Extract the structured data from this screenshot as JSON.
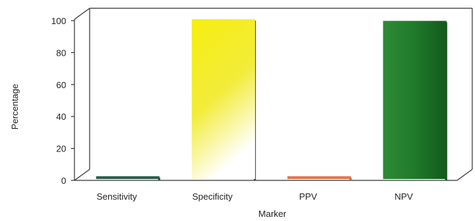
{
  "chart_data": {
    "type": "bar",
    "title": "",
    "xlabel": "Marker",
    "ylabel": "Percentage",
    "categories": [
      "Sensitivity",
      "Specificity",
      "PPV",
      "NPV"
    ],
    "values": [
      1,
      100,
      1,
      99
    ],
    "ylim": [
      0,
      100
    ],
    "yticks": [
      0,
      20,
      40,
      60,
      80,
      100
    ],
    "grid": false,
    "legend": "none",
    "colors": {
      "Sensitivity": "#2f5d4e",
      "Specificity": "#f2ea14",
      "PPV": "#e0784e",
      "NPV": "#1f7a2a"
    }
  }
}
